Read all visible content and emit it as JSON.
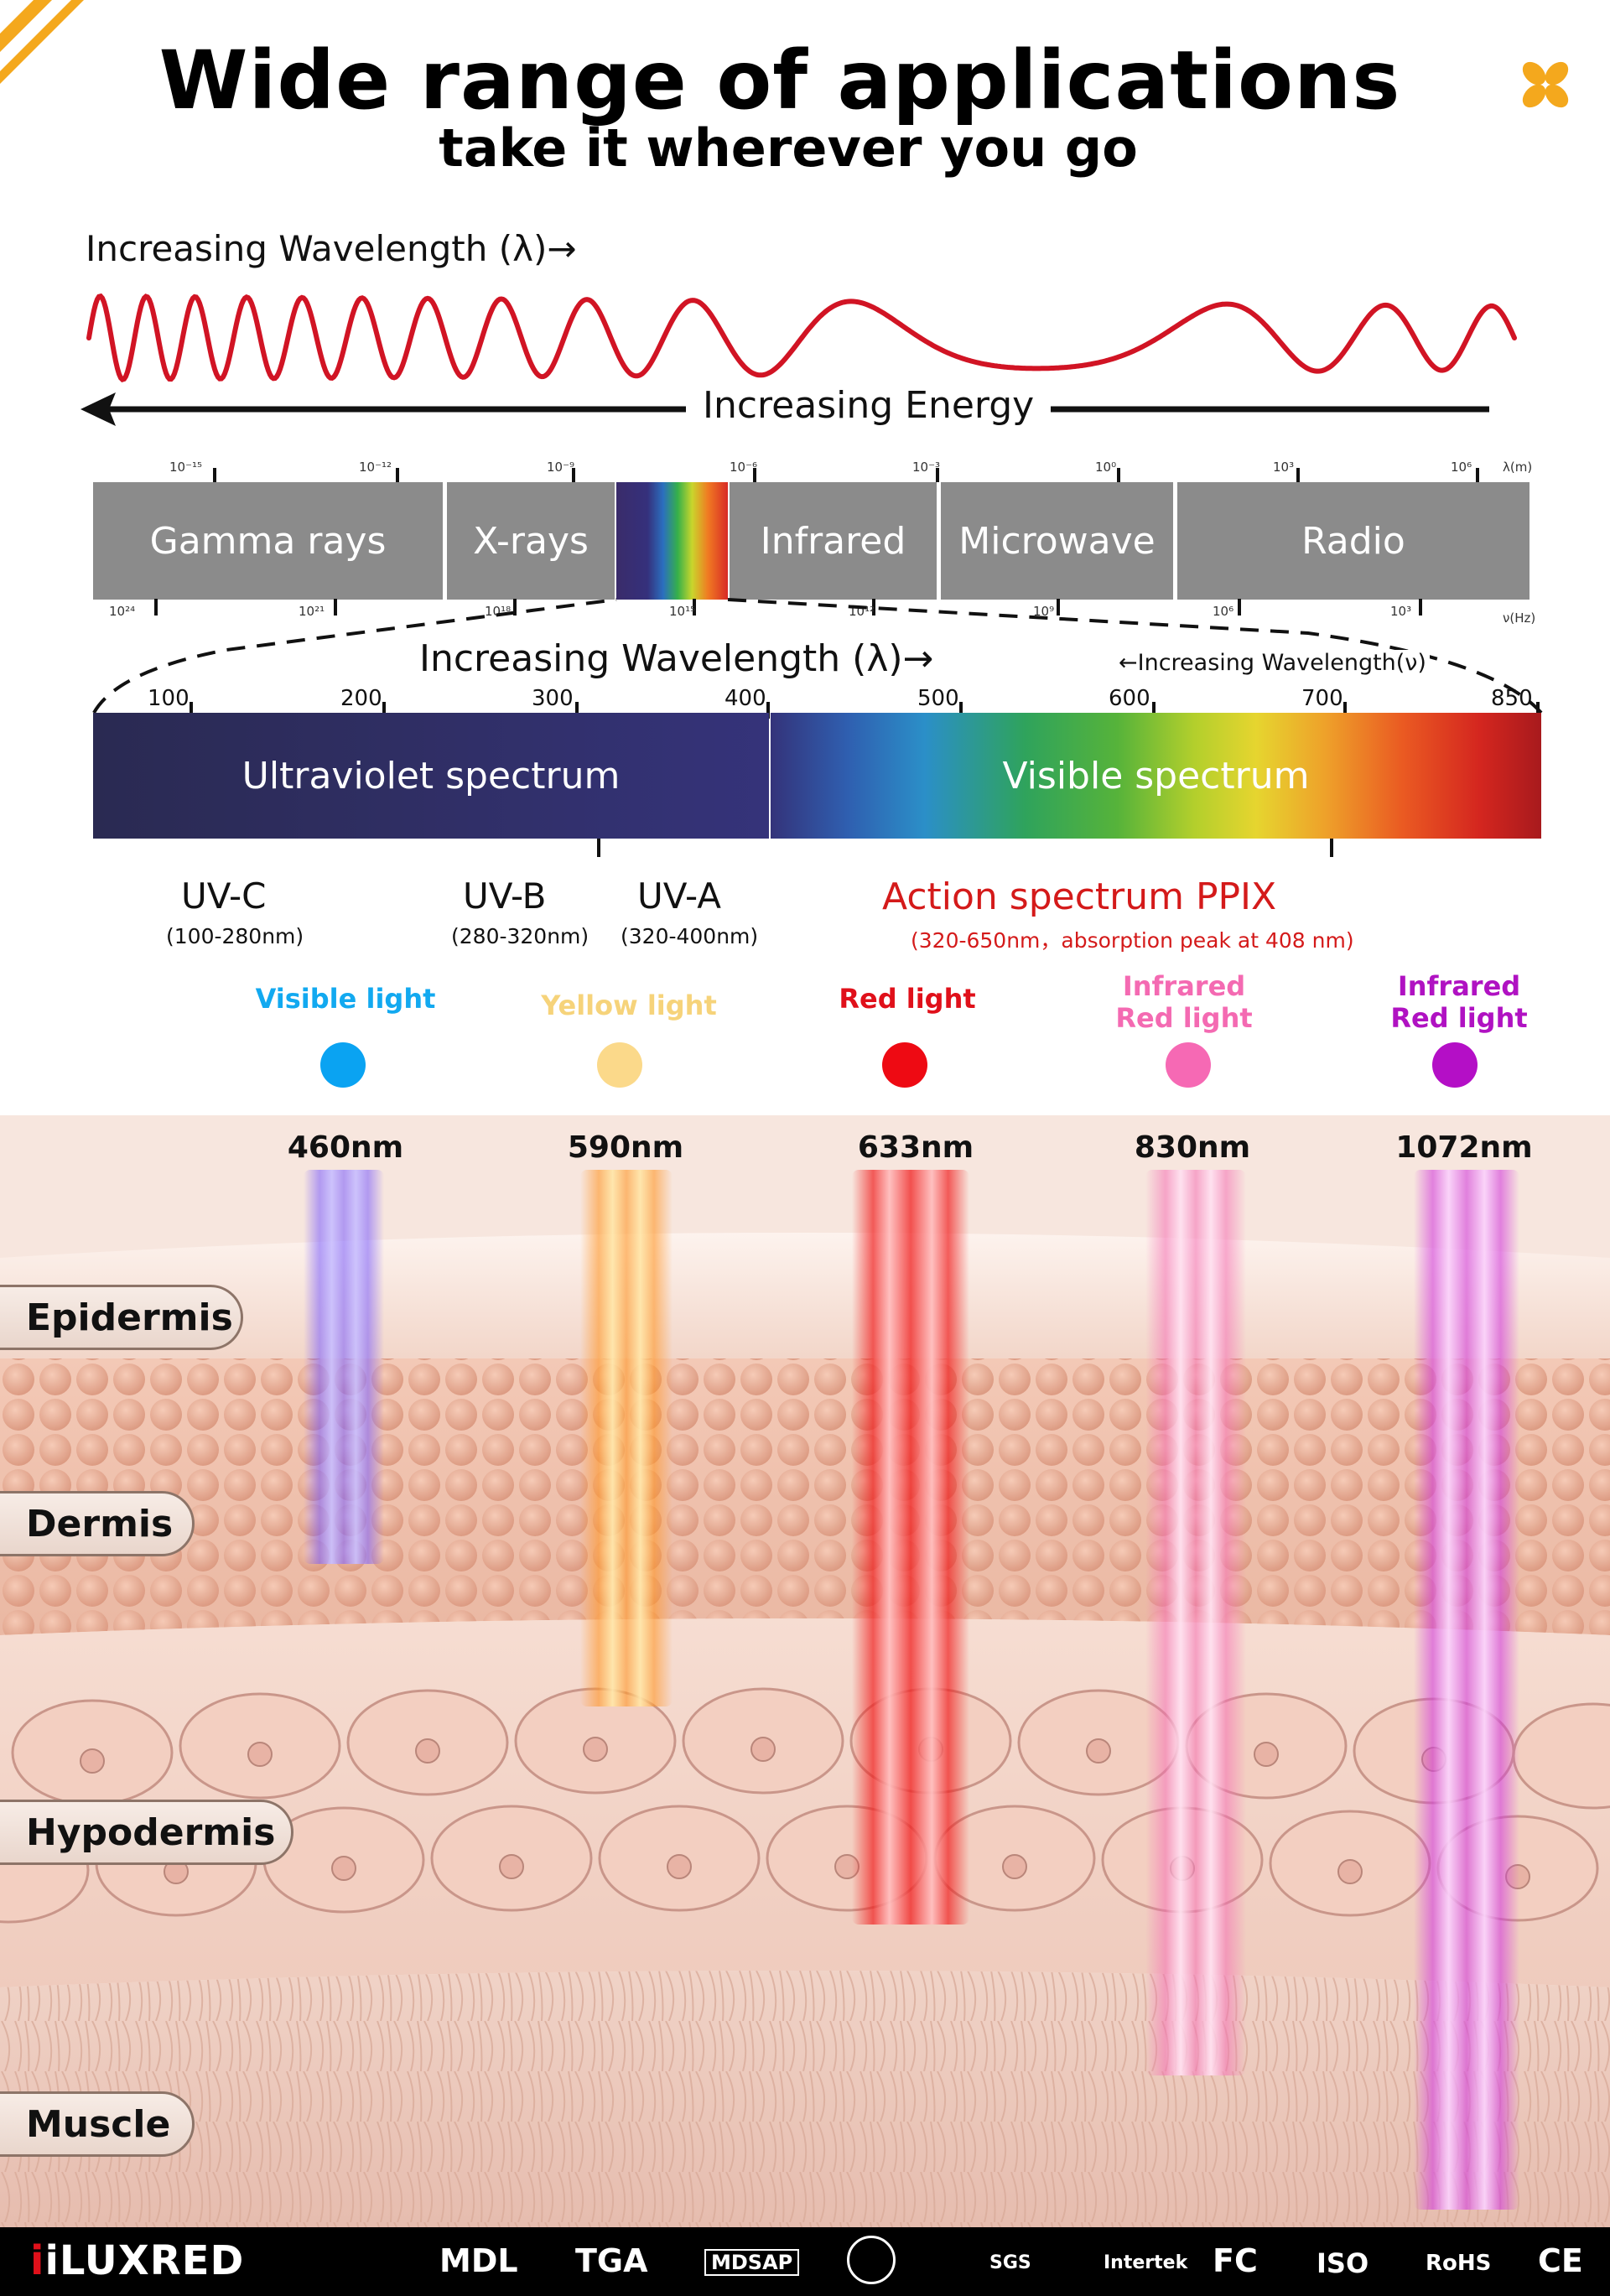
{
  "header": {
    "title": "Wide range of applications",
    "subtitle": "take it wherever you go"
  },
  "wave_section": {
    "wavelength_label": "Increasing Wavelength (λ)→",
    "energy_label": "Increasing Energy",
    "wave_color": "#d11424"
  },
  "em_spectrum": {
    "bands": [
      "Gamma rays",
      "X-rays",
      "Infrared",
      "Microwave",
      "Radio"
    ],
    "band_color": "#8b8b8b",
    "top_ticks": [
      "10⁻¹⁵",
      "10⁻¹²",
      "10⁻⁹",
      "10⁻⁶",
      "10⁻³",
      "10⁰",
      "10³",
      "10⁶"
    ],
    "top_unit": "λ(m)",
    "bottom_ticks": [
      "10²⁴",
      "10²¹",
      "10¹⁸",
      "10¹⁵",
      "10¹²",
      "10⁹",
      "10⁶",
      "10³"
    ],
    "bottom_unit": "ν(Hz)"
  },
  "zoom_section": {
    "wavelength_label": "Increasing Wavelength (λ)→",
    "frequency_label": "←Increasing Wavelength(ν)",
    "scale": [
      "100",
      "200",
      "300",
      "400",
      "500",
      "600",
      "700",
      "850"
    ],
    "uv_bar_label": "Ultraviolet spectrum",
    "visible_bar_label": "Visible spectrum"
  },
  "uv_bands": [
    {
      "name": "UV-C",
      "range": "(100-280nm)"
    },
    {
      "name": "UV-B",
      "range": "(280-320nm)"
    },
    {
      "name": "UV-A",
      "range": "(320-400nm)"
    }
  ],
  "action_spectrum": {
    "title": "Action spectrum PPIX",
    "detail": "(320-650nm，absorption peak at 408 nm)",
    "color": "#d41a1a"
  },
  "lights": [
    {
      "label_line1": "",
      "label_line2": "Visible light",
      "color": "#12a9f0",
      "dot": "#0aa3f2",
      "wavelength": "460nm"
    },
    {
      "label_line1": "",
      "label_line2": "Yellow light",
      "color": "#f6d37a",
      "dot": "#fbd98a",
      "wavelength": "590nm"
    },
    {
      "label_line1": "",
      "label_line2": "Red light",
      "color": "#e0101a",
      "dot": "#ee0a13",
      "wavelength": "633nm"
    },
    {
      "label_line1": "Infrared",
      "label_line2": "Red light",
      "color": "#f46ab2",
      "dot": "#f669b4",
      "wavelength": "830nm"
    },
    {
      "label_line1": "Infrared",
      "label_line2": "Red light",
      "color": "#b012c2",
      "dot": "#b40fc6",
      "wavelength": "1072nm"
    }
  ],
  "skin_layers": [
    "Epidermis",
    "Dermis",
    "Hypodermis",
    "Muscle"
  ],
  "footer": {
    "brand": "iLUXRED",
    "certifications": [
      "MDL",
      "TGA",
      "MDSAP",
      "SGS",
      "Intertek",
      "FC",
      "ISO",
      "RoHS",
      "CE"
    ]
  }
}
